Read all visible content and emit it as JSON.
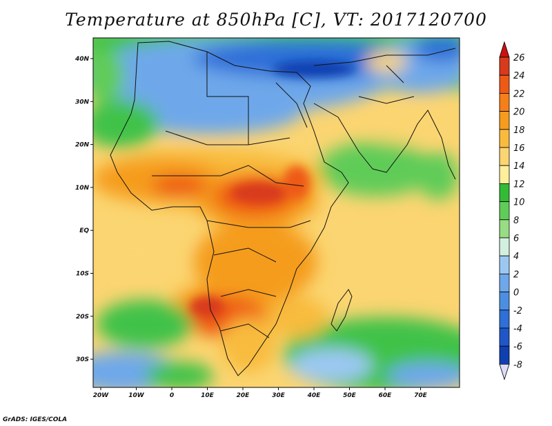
{
  "title": "Temperature at 850hPa [C], VT: 2017120700",
  "footer": "GrADS: IGES/COLA",
  "map": {
    "lon_labels": [
      "20W",
      "10W",
      "0",
      "10E",
      "20E",
      "30E",
      "40E",
      "50E",
      "60E",
      "70E"
    ],
    "lat_labels": [
      "40N",
      "30N",
      "20N",
      "10N",
      "EQ",
      "10S",
      "20S",
      "30S"
    ],
    "lon_range": [
      -23,
      80
    ],
    "lat_range": [
      -36,
      45
    ]
  },
  "colorbar": {
    "levels": [
      "26",
      "24",
      "22",
      "20",
      "18",
      "16",
      "14",
      "12",
      "10",
      "8",
      "6",
      "4",
      "2",
      "0",
      "-2",
      "-4",
      "-6",
      "-8"
    ],
    "colors": [
      "#d83a1c",
      "#ee5a16",
      "#f67f1a",
      "#f59c1f",
      "#f8bb3d",
      "#fbd571",
      "#fdef9b",
      "#33bb36",
      "#60cc58",
      "#98dc84",
      "#d3f0de",
      "#9bc8f2",
      "#6ea8ea",
      "#4b8fe2",
      "#2e6fd8",
      "#1f57c9",
      "#1040b0",
      "#0a1c80"
    ],
    "top_arrow_color": "#cc1010",
    "bottom_arrow_color": "#dcdcf8"
  }
}
